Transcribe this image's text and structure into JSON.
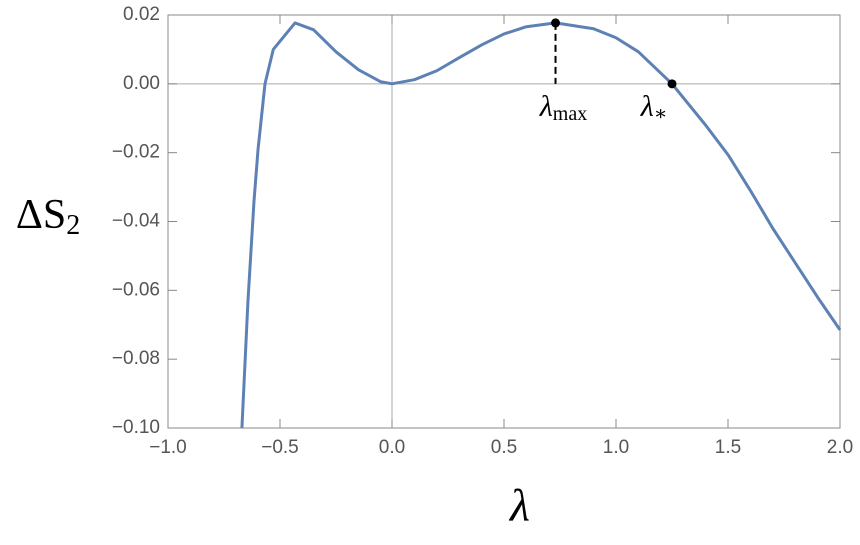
{
  "chart_data": {
    "type": "line",
    "xlabel": "λ",
    "ylabel": "ΔS",
    "ylabel_sub": "2",
    "xlim": [
      -1.0,
      2.0
    ],
    "ylim": [
      -0.1,
      0.02
    ],
    "xticks": [
      {
        "value": -1.0,
        "label": "−1.0"
      },
      {
        "value": -0.5,
        "label": "−0.5"
      },
      {
        "value": 0.0,
        "label": "0.0"
      },
      0.5,
      {
        "value": 1.0,
        "label": "1.0"
      },
      1.5,
      {
        "value": 2.0,
        "label": "2.0"
      }
    ],
    "yticks": [
      {
        "value": -0.1,
        "label": "−0.10"
      },
      {
        "value": -0.08,
        "label": "−0.08"
      },
      {
        "value": -0.06,
        "label": "−0.06"
      },
      {
        "value": -0.04,
        "label": "−0.04"
      },
      {
        "value": -0.02,
        "label": "−0.02"
      },
      {
        "value": 0.0,
        "label": "0.00"
      },
      {
        "value": 0.02,
        "label": "0.02"
      }
    ],
    "series": [
      {
        "color": "#5e81b5",
        "x": [
          -0.67,
          -0.643,
          -0.616,
          -0.598,
          -0.567,
          -0.53,
          -0.433,
          -0.35,
          -0.25,
          -0.15,
          -0.05,
          0.0,
          0.1,
          0.2,
          0.3,
          0.4,
          0.5,
          0.6,
          0.73,
          0.9,
          1.0,
          1.1,
          1.25,
          1.4,
          1.5,
          1.6,
          1.7,
          1.8,
          1.9,
          2.0
        ],
        "values": [
          -0.1,
          -0.063,
          -0.034,
          -0.019,
          0.0,
          0.01,
          0.0177,
          0.0157,
          0.0093,
          0.0041,
          0.0006,
          0.0,
          0.0012,
          0.0038,
          0.0076,
          0.0113,
          0.0145,
          0.0166,
          0.0177,
          0.016,
          0.0134,
          0.0093,
          0.0,
          -0.012,
          -0.0206,
          -0.031,
          -0.042,
          -0.052,
          -0.062,
          -0.0715
        ]
      }
    ],
    "annotations": [
      {
        "label": "λ",
        "sub": "max",
        "x": 0.73,
        "y": 0.0177,
        "dashed": true
      },
      {
        "label": "λ",
        "sub": "∗",
        "x": 1.25,
        "y": 0.0,
        "dashed": false
      }
    ]
  }
}
